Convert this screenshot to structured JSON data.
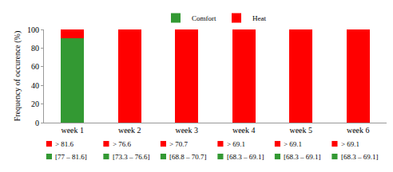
{
  "chart_data": {
    "type": "bar",
    "stacked": true,
    "grid": false,
    "legend": "top",
    "y_label": "Frequency of occurence (%)",
    "categories": [
      "week 1",
      "week 2",
      "week 3",
      "week 4",
      "week 5",
      "week 6"
    ],
    "series": [
      {
        "name": "Comfort",
        "color": "#339933",
        "values": [
          91,
          0,
          0,
          0,
          0,
          0
        ],
        "ranges": [
          "[77 – 81.6]",
          "[73.3 – 76.6]",
          "[68.8 – 70.7]",
          "[68.3 – 69.1]",
          "[68.3 – 69.1]",
          "[68.3 – 69.1]"
        ]
      },
      {
        "name": "Heat",
        "color": "#ff0000",
        "values": [
          9,
          100,
          100,
          100,
          100,
          100
        ],
        "ranges": [
          "> 81.6",
          "> 76.6",
          "> 70.7",
          "> 69.1",
          "> 69.1",
          "> 69.1"
        ]
      }
    ],
    "ylim": [
      0,
      100
    ],
    "yticks": [
      0,
      20,
      40,
      60,
      80,
      100
    ]
  }
}
